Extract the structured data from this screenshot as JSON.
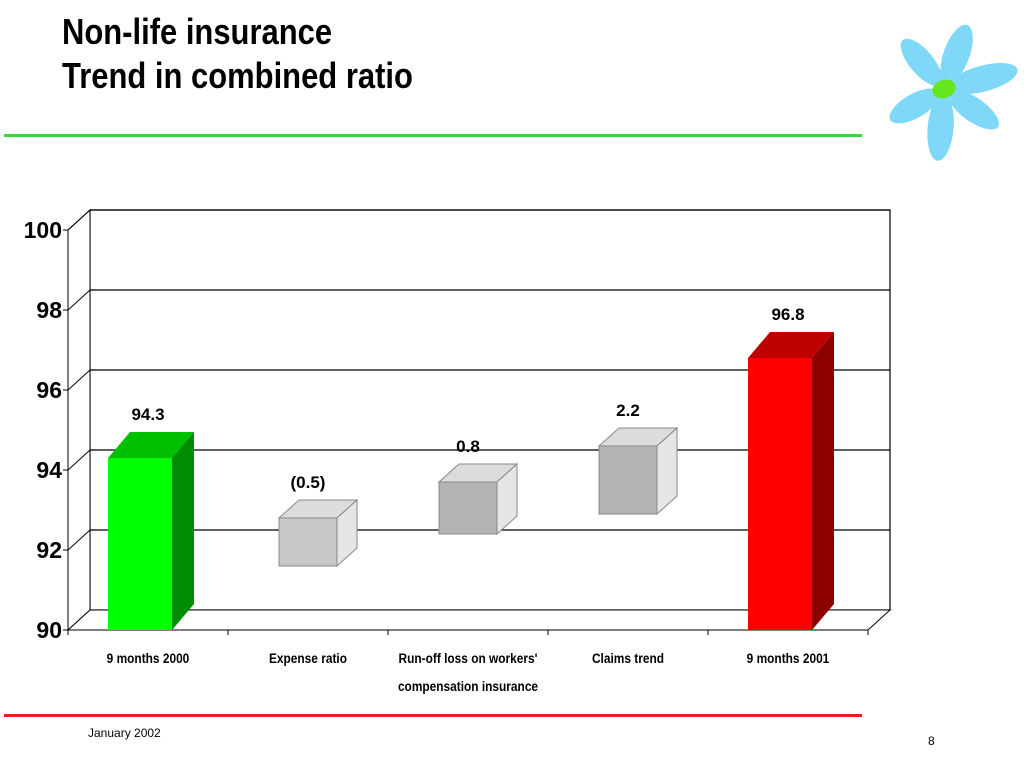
{
  "slide": {
    "title_line1": "Non-life insurance",
    "title_line2": "Trend in combined ratio",
    "footer_date": "January 2002",
    "page_number": "8"
  },
  "colors": {
    "top_rule": "#33dd33",
    "bottom_rule": "#ee1c1c",
    "logo_petals": "#7fd8f7",
    "logo_center": "#66e61f"
  },
  "logo": {
    "icon": "flower-logo-icon"
  },
  "chart_data": {
    "type": "bar",
    "subtype": "waterfall-3d",
    "categories": [
      "9 months 2000",
      "Expense ratio",
      "Run-off loss on workers' compensation insurance",
      "Claims trend",
      "9 months 2001"
    ],
    "category_lines": [
      [
        "9 months 2000"
      ],
      [
        "Expense ratio"
      ],
      [
        "Run-off loss on workers'",
        "compensation insurance"
      ],
      [
        "Claims trend"
      ],
      [
        "9 months 2001"
      ]
    ],
    "values": [
      94.3,
      -0.5,
      0.8,
      2.2,
      96.8
    ],
    "value_labels": [
      "94.3",
      "(0.5)",
      "0.8",
      "2.2",
      "96.8"
    ],
    "bars": [
      {
        "kind": "total",
        "from": 90,
        "to": 94.3,
        "color": "#00ff00"
      },
      {
        "kind": "delta",
        "from": 91.6,
        "to": 92.8,
        "color": "#c8c8c8"
      },
      {
        "kind": "delta",
        "from": 92.4,
        "to": 93.7,
        "color": "#b4b4b4"
      },
      {
        "kind": "delta",
        "from": 92.9,
        "to": 94.6,
        "color": "#b4b4b4"
      },
      {
        "kind": "total",
        "from": 90,
        "to": 96.8,
        "color": "#ff0000"
      }
    ],
    "ylim": [
      90,
      100
    ],
    "yticks": [
      90,
      92,
      94,
      96,
      98,
      100
    ],
    "title": "",
    "xlabel": "",
    "ylabel": "",
    "grid": true,
    "legend": "none"
  }
}
